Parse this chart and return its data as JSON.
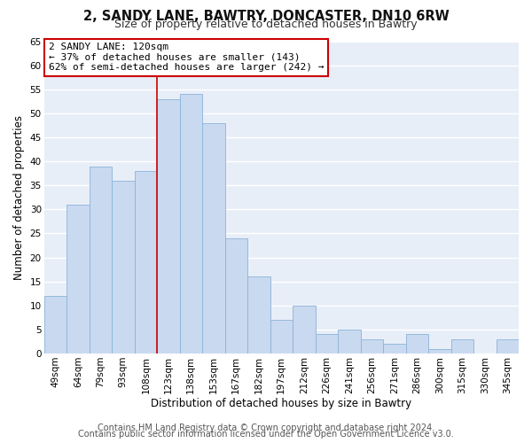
{
  "title": "2, SANDY LANE, BAWTRY, DONCASTER, DN10 6RW",
  "subtitle": "Size of property relative to detached houses in Bawtry",
  "xlabel": "Distribution of detached houses by size in Bawtry",
  "ylabel": "Number of detached properties",
  "bar_labels": [
    "49sqm",
    "64sqm",
    "79sqm",
    "93sqm",
    "108sqm",
    "123sqm",
    "138sqm",
    "153sqm",
    "167sqm",
    "182sqm",
    "197sqm",
    "212sqm",
    "226sqm",
    "241sqm",
    "256sqm",
    "271sqm",
    "286sqm",
    "300sqm",
    "315sqm",
    "330sqm",
    "345sqm"
  ],
  "bar_values": [
    12,
    31,
    39,
    36,
    38,
    53,
    54,
    48,
    24,
    16,
    7,
    10,
    4,
    5,
    3,
    2,
    4,
    1,
    3,
    0,
    3
  ],
  "bar_color": "#c9d9f0",
  "bar_edge_color": "#8ab4d8",
  "red_line_after_index": 4,
  "red_line_color": "#cc0000",
  "annotation_text": "2 SANDY LANE: 120sqm\n← 37% of detached houses are smaller (143)\n62% of semi-detached houses are larger (242) →",
  "annotation_box_facecolor": "#ffffff",
  "annotation_box_edgecolor": "#cc0000",
  "ylim": [
    0,
    65
  ],
  "yticks": [
    0,
    5,
    10,
    15,
    20,
    25,
    30,
    35,
    40,
    45,
    50,
    55,
    60,
    65
  ],
  "footer_line1": "Contains HM Land Registry data © Crown copyright and database right 2024.",
  "footer_line2": "Contains public sector information licensed under the Open Government Licence v3.0.",
  "fig_bg_color": "#ffffff",
  "plot_bg_color": "#e8eef8",
  "grid_color": "#ffffff",
  "title_fontsize": 10.5,
  "subtitle_fontsize": 9,
  "footer_fontsize": 7,
  "axis_label_fontsize": 8.5,
  "tick_fontsize": 7.5,
  "annotation_fontsize": 8
}
